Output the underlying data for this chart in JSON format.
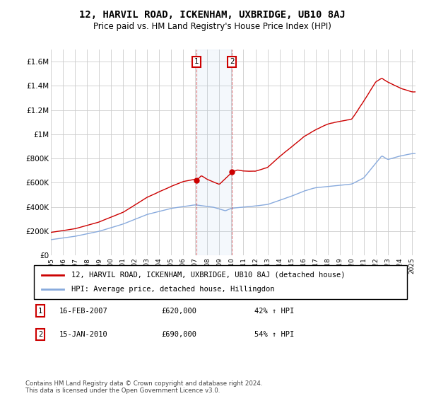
{
  "title": "12, HARVIL ROAD, ICKENHAM, UXBRIDGE, UB10 8AJ",
  "subtitle": "Price paid vs. HM Land Registry's House Price Index (HPI)",
  "title_fontsize": 10,
  "subtitle_fontsize": 8.5,
  "ylim": [
    0,
    1700000
  ],
  "yticks": [
    0,
    200000,
    400000,
    600000,
    800000,
    1000000,
    1200000,
    1400000,
    1600000
  ],
  "ytick_labels": [
    "£0",
    "£200K",
    "£400K",
    "£600K",
    "£800K",
    "£1M",
    "£1.2M",
    "£1.4M",
    "£1.6M"
  ],
  "sale1_date": 2007.12,
  "sale1_price": 620000,
  "sale1_label": "1",
  "sale1_text": "16-FEB-2007",
  "sale1_amount": "£620,000",
  "sale1_hpi": "42% ↑ HPI",
  "sale2_date": 2010.04,
  "sale2_price": 690000,
  "sale2_label": "2",
  "sale2_text": "15-JAN-2010",
  "sale2_amount": "£690,000",
  "sale2_hpi": "54% ↑ HPI",
  "property_color": "#cc0000",
  "hpi_color": "#88aadd",
  "background_color": "#ffffff",
  "grid_color": "#cccccc",
  "legend_property": "12, HARVIL ROAD, ICKENHAM, UXBRIDGE, UB10 8AJ (detached house)",
  "legend_hpi": "HPI: Average price, detached house, Hillingdon",
  "footer": "Contains HM Land Registry data © Crown copyright and database right 2024.\nThis data is licensed under the Open Government Licence v3.0.",
  "xlim_start": 1995,
  "xlim_end": 2025.3
}
